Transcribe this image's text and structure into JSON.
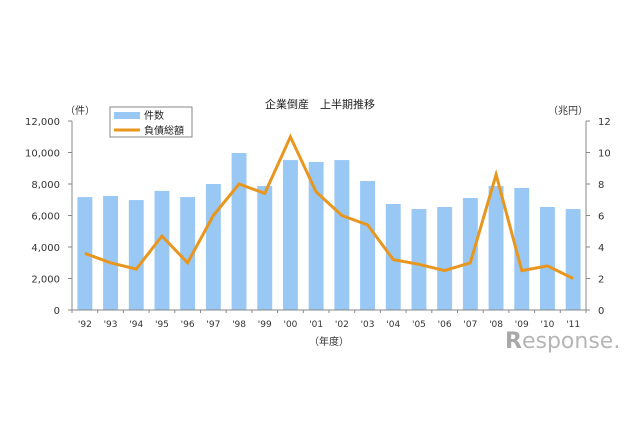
{
  "chart_data": {
    "type": "bar+line",
    "title": "企業倒産　上半期推移",
    "xlabel": "（年度）",
    "ylabel_left": "（件）",
    "ylabel_right": "（兆円）",
    "categories": [
      "'92",
      "'93",
      "'94",
      "'95",
      "'96",
      "'97",
      "'98",
      "'99",
      "'00",
      "'01",
      "'02",
      "'03",
      "'04",
      "'05",
      "'06",
      "'07",
      "'08",
      "'09",
      "'10",
      "'11"
    ],
    "series": [
      {
        "name": "件数",
        "type": "bar",
        "axis": "left",
        "color": "#99c8f5",
        "values": [
          7170,
          7240,
          6980,
          7560,
          7170,
          8000,
          9970,
          7870,
          9520,
          9400,
          9520,
          8190,
          6730,
          6410,
          6540,
          7110,
          7870,
          7750,
          6540,
          6410
        ]
      },
      {
        "name": "負債総額",
        "type": "line",
        "axis": "right",
        "color": "#e8961e",
        "values": [
          3.6,
          3.0,
          2.6,
          4.7,
          3.0,
          6.0,
          8.0,
          7.4,
          11.0,
          7.5,
          6.0,
          5.4,
          3.2,
          2.9,
          2.5,
          3.0,
          8.6,
          2.5,
          2.8,
          2.0
        ]
      }
    ],
    "ylim_left": [
      0,
      12000
    ],
    "yticks_left": [
      "0",
      "2,000",
      "4,000",
      "6,000",
      "8,000",
      "10,000",
      "12,000"
    ],
    "ylim_right": [
      0,
      12
    ],
    "yticks_right": [
      "0",
      "2",
      "4",
      "6",
      "8",
      "10",
      "12"
    ],
    "grid": false,
    "legend_position": "top-left"
  },
  "legend": {
    "items": [
      {
        "label": "件数"
      },
      {
        "label": "負債総額"
      }
    ]
  },
  "watermark": {
    "text": "esponse.",
    "mark": "R"
  }
}
